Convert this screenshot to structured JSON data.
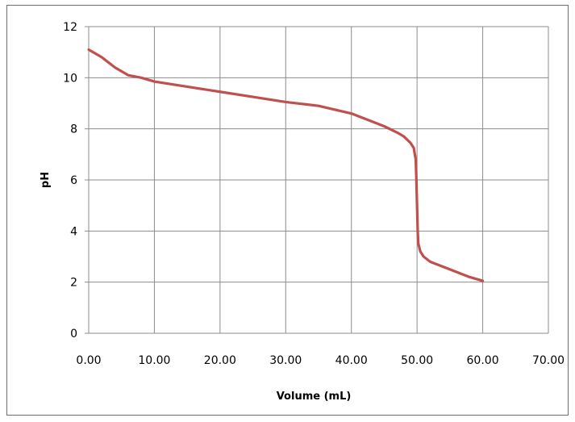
{
  "chart_data": {
    "type": "line",
    "title": "",
    "xlabel": "Volume (mL)",
    "ylabel": "pH",
    "xlim": [
      0,
      70
    ],
    "ylim": [
      0,
      12
    ],
    "x_ticks": [
      "0.00",
      "10.00",
      "20.00",
      "30.00",
      "40.00",
      "50.00",
      "60.00",
      "70.00"
    ],
    "y_ticks": [
      "0",
      "2",
      "4",
      "6",
      "8",
      "10",
      "12"
    ],
    "grid": true,
    "legend": "none",
    "series": [
      {
        "color": "#c0504d",
        "x": [
          0,
          2,
          4,
          6,
          8,
          10,
          15,
          20,
          25,
          30,
          35,
          40,
          43,
          45,
          47,
          48,
          49,
          49.5,
          49.8,
          49.9,
          50,
          50.1,
          50.2,
          50.5,
          51,
          52,
          55,
          58,
          60
        ],
        "y": [
          11.1,
          10.8,
          10.4,
          10.1,
          10.0,
          9.85,
          9.65,
          9.45,
          9.25,
          9.05,
          8.9,
          8.6,
          8.3,
          8.1,
          7.85,
          7.7,
          7.45,
          7.25,
          6.8,
          6.0,
          5.0,
          4.0,
          3.5,
          3.2,
          3.0,
          2.8,
          2.5,
          2.2,
          2.05
        ]
      }
    ]
  }
}
